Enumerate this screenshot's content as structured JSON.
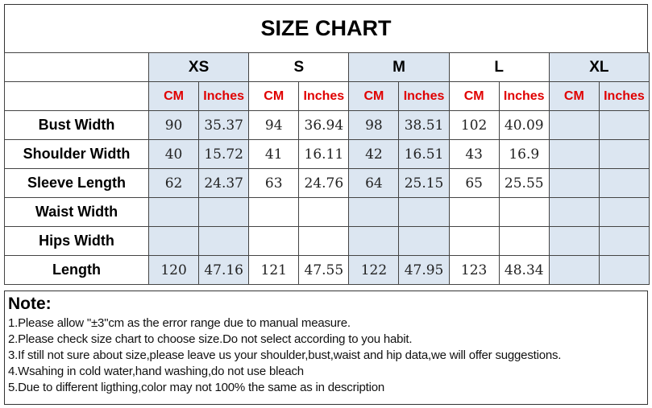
{
  "title": "SIZE CHART",
  "sizes": [
    "XS",
    "S",
    "M",
    "L",
    "XL"
  ],
  "units": {
    "cm": "CM",
    "in": "Inches"
  },
  "rows": [
    {
      "label": "Bust Width",
      "values": [
        "90",
        "35.37",
        "94",
        "36.94",
        "98",
        "38.51",
        "102",
        "40.09",
        "",
        ""
      ]
    },
    {
      "label": "Shoulder Width",
      "values": [
        "40",
        "15.72",
        "41",
        "16.11",
        "42",
        "16.51",
        "43",
        "16.9",
        "",
        ""
      ]
    },
    {
      "label": "Sleeve Length",
      "values": [
        "62",
        "24.37",
        "63",
        "24.76",
        "64",
        "25.15",
        "65",
        "25.55",
        "",
        ""
      ]
    },
    {
      "label": "Waist Width",
      "values": [
        "",
        "",
        "",
        "",
        "",
        "",
        "",
        "",
        "",
        ""
      ]
    },
    {
      "label": "Hips Width",
      "values": [
        "",
        "",
        "",
        "",
        "",
        "",
        "",
        "",
        "",
        ""
      ]
    },
    {
      "label": "Length",
      "values": [
        "120",
        "47.16",
        "121",
        "47.55",
        "122",
        "47.95",
        "123",
        "48.34",
        "",
        ""
      ]
    }
  ],
  "notes": {
    "heading": "Note:",
    "items": [
      "1.Please allow \"±3\"cm as the error range due to manual measure.",
      "2.Please check size chart to choose size.Do not select according to you habit.",
      "3.If still not sure about size,please leave us your shoulder,bust,waist and hip data,we will offer suggestions.",
      "4.Wsahing in cold water,hand washing,do not use bleach",
      "5.Due to different ligthing,color may not 100% the same as in description"
    ]
  },
  "colors": {
    "shade": "#dce6f1",
    "unit": "#e00000"
  }
}
